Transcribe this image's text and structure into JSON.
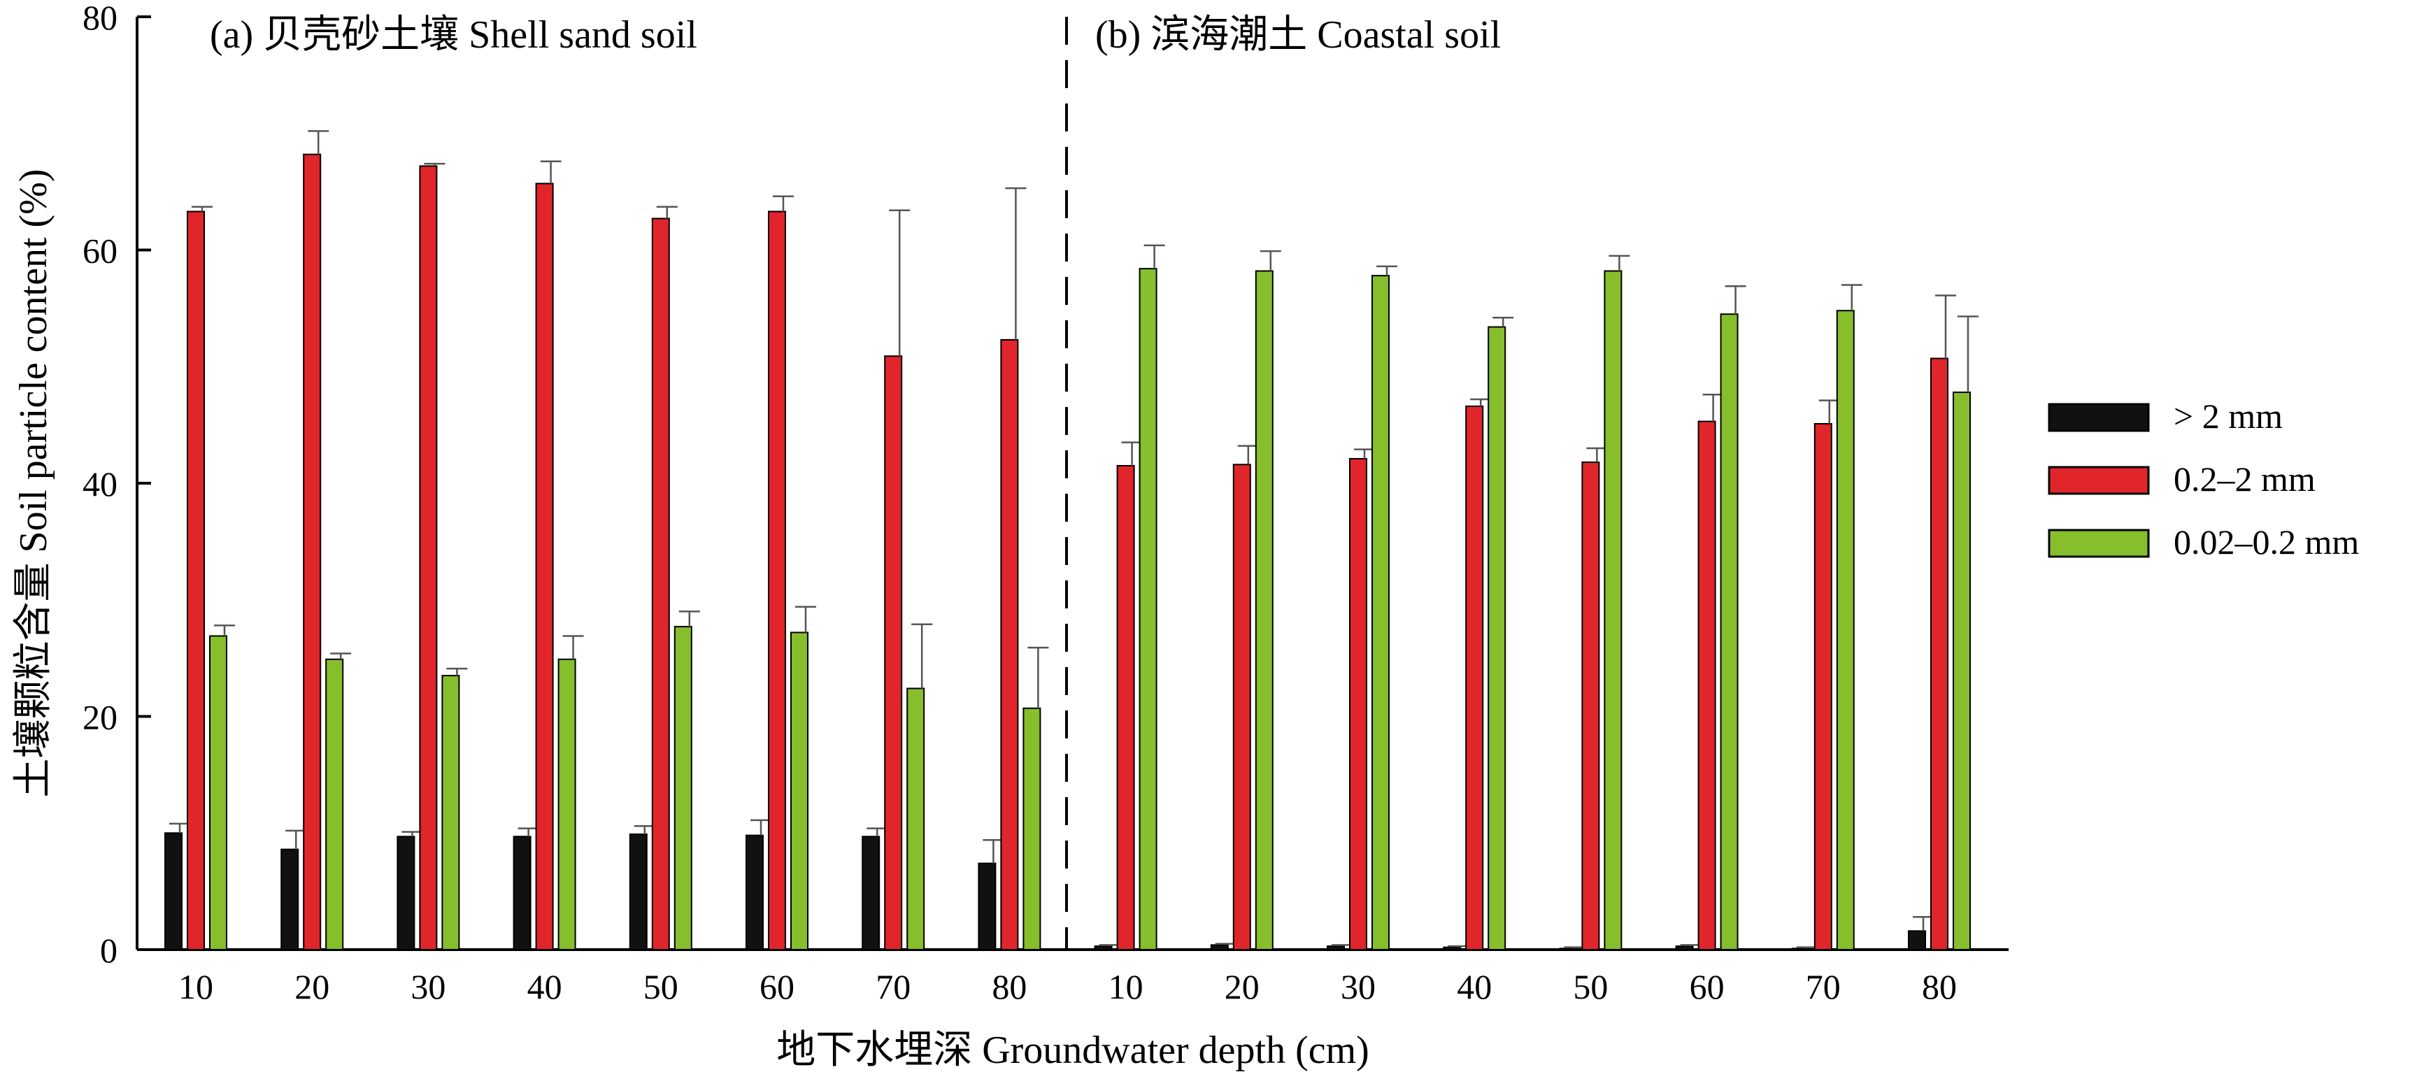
{
  "chart_data": {
    "type": "bar",
    "ylabel": "土壤颗粒含量 Soil particle content (%)",
    "xlabel": "地下水埋深 Groundwater depth (cm)",
    "ylim": [
      0,
      80
    ],
    "yticks": [
      "0",
      "20",
      "40",
      "60",
      "80"
    ],
    "error_bars": true,
    "legend_position": "right",
    "series_colors": [
      "#111111",
      "#e0262a",
      "#86be2c"
    ],
    "legend": [
      {
        "label": "> 2 mm"
      },
      {
        "label": "0.2–2 mm"
      },
      {
        "label": "0.02–0.2 mm"
      }
    ],
    "panels": [
      {
        "title": "(a) 贝壳砂土壤 Shell sand soil",
        "categories": [
          "10",
          "20",
          "30",
          "40",
          "50",
          "60",
          "70",
          "80"
        ],
        "series": [
          {
            "name": "> 2 mm",
            "values": [
              10.0,
              8.6,
              9.7,
              9.7,
              9.9,
              9.8,
              9.7,
              7.4
            ],
            "errors": [
              0.8,
              1.6,
              0.4,
              0.7,
              0.7,
              1.3,
              0.7,
              2.0
            ]
          },
          {
            "name": "0.2–2 mm",
            "values": [
              63.3,
              68.2,
              67.2,
              65.7,
              62.7,
              63.3,
              50.9,
              52.3
            ],
            "errors": [
              0.4,
              2.0,
              0.2,
              1.9,
              1.0,
              1.3,
              12.5,
              13.0
            ]
          },
          {
            "name": "0.02–0.2 mm",
            "values": [
              26.9,
              24.9,
              23.5,
              24.9,
              27.7,
              27.2,
              22.4,
              20.7
            ],
            "errors": [
              0.9,
              0.5,
              0.6,
              2.0,
              1.3,
              2.2,
              5.5,
              5.2
            ]
          }
        ]
      },
      {
        "title": "(b) 滨海潮土 Coastal soil",
        "categories": [
          "10",
          "20",
          "30",
          "40",
          "50",
          "60",
          "70",
          "80"
        ],
        "series": [
          {
            "name": "> 2 mm",
            "values": [
              0.3,
              0.4,
              0.3,
              0.2,
              0.1,
              0.3,
              0.1,
              1.6
            ],
            "errors": [
              0.1,
              0.1,
              0.1,
              0.1,
              0.1,
              0.1,
              0.1,
              1.2
            ]
          },
          {
            "name": "0.2–2 mm",
            "values": [
              41.5,
              41.6,
              42.1,
              46.6,
              41.8,
              45.3,
              45.1,
              50.7
            ],
            "errors": [
              2.0,
              1.6,
              0.8,
              0.6,
              1.2,
              2.3,
              2.0,
              5.4
            ]
          },
          {
            "name": "0.02–0.2 mm",
            "values": [
              58.4,
              58.2,
              57.8,
              53.4,
              58.2,
              54.5,
              54.8,
              47.8
            ],
            "errors": [
              2.0,
              1.7,
              0.8,
              0.8,
              1.3,
              2.4,
              2.2,
              6.5
            ]
          }
        ]
      }
    ]
  }
}
